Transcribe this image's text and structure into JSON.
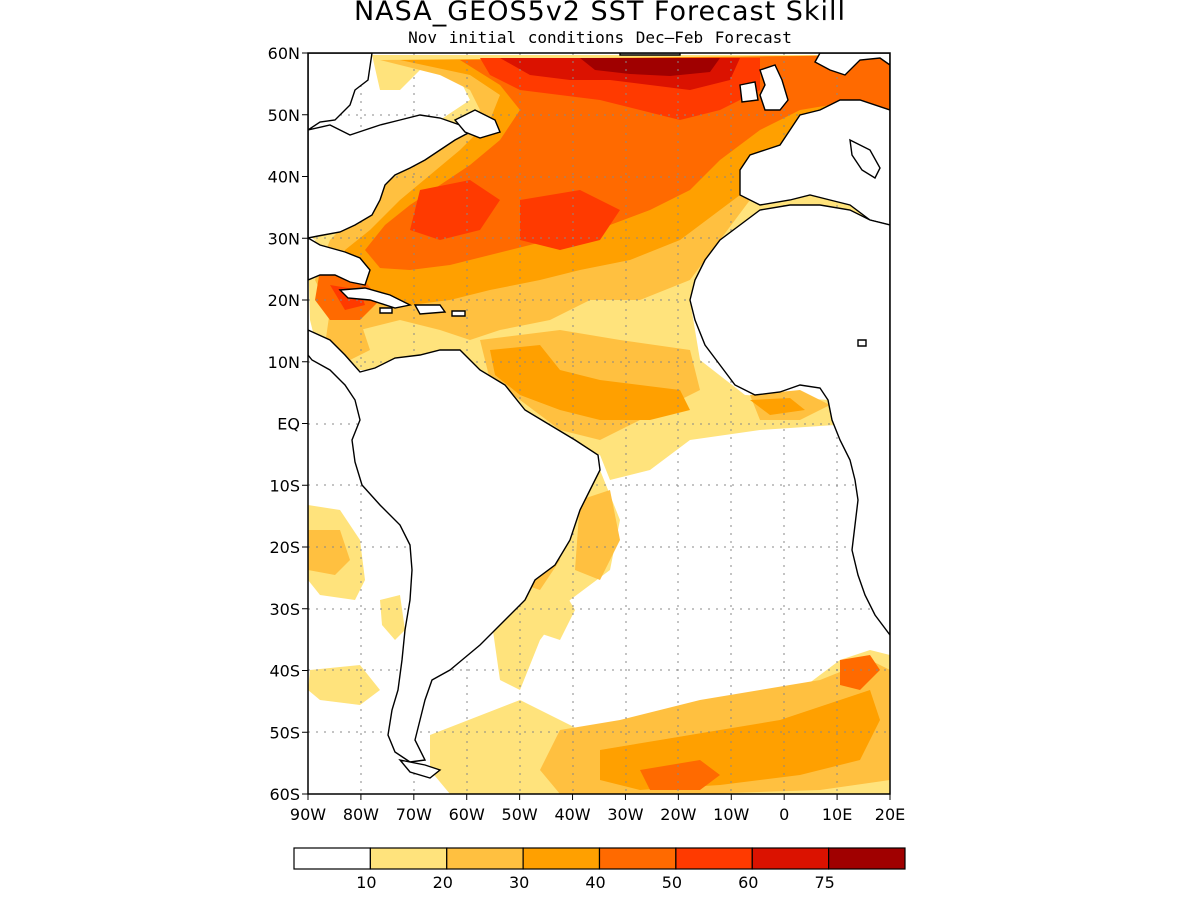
{
  "title": "NASA_GEOS5v2 SST Forecast Skill",
  "subtitle": "Nov initial conditions   Dec–Feb Forecast",
  "map": {
    "lat_labels": [
      "60N",
      "50N",
      "40N",
      "30N",
      "20N",
      "10N",
      "EQ",
      "10S",
      "20S",
      "30S",
      "40S",
      "50S",
      "60S"
    ],
    "lon_labels": [
      "90W",
      "80W",
      "70W",
      "60W",
      "50W",
      "40W",
      "30W",
      "20W",
      "10W",
      "0",
      "10E",
      "20E"
    ],
    "grid": true
  },
  "legend": {
    "bins": [
      {
        "color": "#ffffff",
        "label": "10"
      },
      {
        "color": "#ffe37c",
        "label": "20"
      },
      {
        "color": "#ffc040",
        "label": "30"
      },
      {
        "color": "#ffa000",
        "label": "40"
      },
      {
        "color": "#ff6a00",
        "label": "50"
      },
      {
        "color": "#ff3a00",
        "label": "60"
      },
      {
        "color": "#db1200",
        "label": "75"
      },
      {
        "color": "#a00000",
        "label": ""
      }
    ]
  }
}
